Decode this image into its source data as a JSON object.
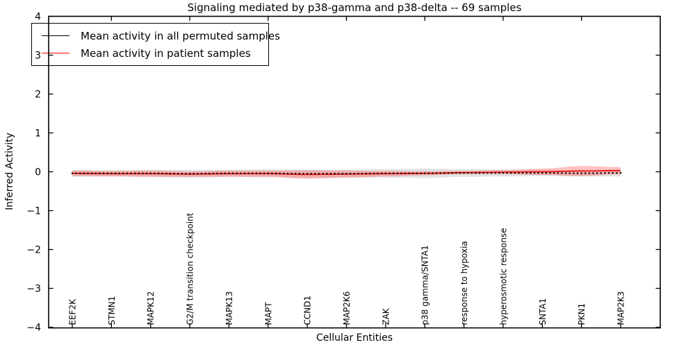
{
  "figure": {
    "title": "Signaling mediated by p38-gamma and p38-delta -- 69 samples",
    "xlabel": "Cellular Entities",
    "ylabel": "Inferred Activity"
  },
  "legend": {
    "items": [
      {
        "label": "Mean activity in all permuted samples",
        "color": "#000000"
      },
      {
        "label": "Mean activity in patient samples",
        "color": "#ff0000"
      }
    ]
  },
  "chart_data": {
    "type": "line",
    "title": "Signaling mediated by p38-gamma and p38-delta -- 69 samples",
    "xlabel": "Cellular Entities",
    "ylabel": "Inferred Activity",
    "ylim": [
      -4,
      4
    ],
    "yticks": [
      4,
      3,
      2,
      1,
      0,
      -1,
      -2,
      -3,
      -4
    ],
    "grid": false,
    "legend_position": "upper left",
    "categories": [
      "EEF2K",
      "STMN1",
      "MAPK12",
      "G2/M transition checkpoint",
      "MAPK13",
      "MAPT",
      "CCND1",
      "MAP2K6",
      "ZAK",
      "p38 gamma/SNTA1",
      "response to hypoxia",
      "hyperosmotic response",
      "SNTA1",
      "PKN1",
      "MAP2K3"
    ],
    "points_per_label_interval": 10,
    "series": [
      {
        "name": "Mean activity in all permuted samples",
        "color": "#000000",
        "style": "dotted-markers",
        "band_color": "#bfbfbf",
        "values": [
          -0.04,
          -0.04,
          -0.04,
          -0.05,
          -0.04,
          -0.04,
          -0.05,
          -0.05,
          -0.04,
          -0.04,
          -0.03,
          -0.03,
          -0.03,
          -0.04,
          -0.03
        ],
        "band_halfwidth": [
          0.09,
          0.08,
          0.09,
          0.1,
          0.09,
          0.1,
          0.1,
          0.1,
          0.11,
          0.12,
          0.1,
          0.09,
          0.08,
          0.08,
          0.09
        ]
      },
      {
        "name": "Mean activity in patient samples",
        "color": "#ee1111",
        "style": "solid",
        "band_color": "#ff3333",
        "values": [
          -0.04,
          -0.05,
          -0.05,
          -0.06,
          -0.05,
          -0.05,
          -0.07,
          -0.06,
          -0.05,
          -0.04,
          -0.02,
          -0.01,
          0.0,
          0.02,
          0.03
        ],
        "band_halfwidth": [
          0.07,
          0.07,
          0.08,
          0.07,
          0.08,
          0.08,
          0.11,
          0.09,
          0.07,
          0.05,
          0.04,
          0.05,
          0.08,
          0.13,
          0.09
        ]
      }
    ]
  }
}
